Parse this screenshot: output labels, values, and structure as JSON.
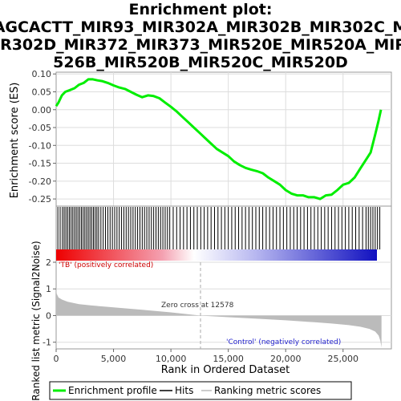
{
  "title_lines": [
    "Enrichment plot:",
    "AGCACTT_MIR93_MIR302A_MIR302B_MIR302C_M",
    "IR302D_MIR372_MIR373_MIR520E_MIR520A_MIR",
    "526B_MIR520B_MIR520C_MIR520D"
  ],
  "colors": {
    "es_line": "#00ee00",
    "hits": "#000000",
    "ranked_fill": "#bbbbbb",
    "positive": "#ee0000",
    "negative": "#0000cc",
    "grid": "#dddddd"
  },
  "chart_data": [
    {
      "type": "line",
      "name": "enrichment",
      "ylabel": "Enrichment score (ES)",
      "ylim": [
        -0.27,
        0.105
      ],
      "xlim": [
        0,
        29000
      ],
      "yticks": [
        "0.10",
        "0.05",
        "0.00",
        "-0.05",
        "-0.10",
        "-0.15",
        "-0.20",
        "-0.25"
      ],
      "grid": true,
      "series": [
        {
          "name": "Enrichment profile",
          "x": [
            0,
            200,
            500,
            800,
            1200,
            1600,
            2000,
            2400,
            2800,
            3200,
            3600,
            4000,
            4500,
            5000,
            5500,
            6000,
            6500,
            7000,
            7500,
            8000,
            8500,
            9000,
            9500,
            10000,
            10500,
            11000,
            11500,
            12000,
            12500,
            13000,
            13500,
            14000,
            14500,
            15000,
            15500,
            16000,
            16500,
            17000,
            17500,
            18000,
            18500,
            19000,
            19500,
            20000,
            20500,
            21000,
            21500,
            22000,
            22500,
            23000,
            23500,
            24000,
            24500,
            25000,
            25500,
            26000,
            26500,
            27000,
            27400,
            27800,
            28100,
            28300
          ],
          "y": [
            0.01,
            0.02,
            0.04,
            0.05,
            0.055,
            0.06,
            0.07,
            0.075,
            0.085,
            0.085,
            0.082,
            0.08,
            0.075,
            0.068,
            0.062,
            0.058,
            0.05,
            0.042,
            0.035,
            0.04,
            0.038,
            0.032,
            0.02,
            0.008,
            -0.005,
            -0.02,
            -0.035,
            -0.05,
            -0.065,
            -0.08,
            -0.095,
            -0.11,
            -0.12,
            -0.13,
            -0.145,
            -0.155,
            -0.163,
            -0.168,
            -0.172,
            -0.178,
            -0.19,
            -0.2,
            -0.21,
            -0.225,
            -0.235,
            -0.24,
            -0.24,
            -0.245,
            -0.245,
            -0.25,
            -0.24,
            -0.238,
            -0.225,
            -0.21,
            -0.205,
            -0.19,
            -0.165,
            -0.14,
            -0.12,
            -0.07,
            -0.03,
            0.0
          ]
        }
      ]
    },
    {
      "type": "hits",
      "name": "hits",
      "xlim": [
        0,
        29000
      ],
      "positions": [
        150,
        350,
        550,
        700,
        850,
        1000,
        1150,
        1300,
        1450,
        1600,
        1750,
        1900,
        2050,
        2200,
        2350,
        2500,
        2650,
        2800,
        2950,
        3100,
        3250,
        3400,
        3550,
        3700,
        3900,
        4100,
        4300,
        4500,
        4700,
        4900,
        5100,
        5300,
        5500,
        5700,
        5900,
        6100,
        6300,
        6500,
        6700,
        6900,
        7100,
        7300,
        7500,
        7700,
        7900,
        8100,
        8300,
        8500,
        8700,
        8900,
        9100,
        9300,
        9500,
        9700,
        9900,
        10200,
        10500,
        10800,
        11100,
        11400,
        11700,
        12000,
        12300,
        12600,
        12900,
        13200,
        13500,
        13800,
        14100,
        14400,
        14700,
        15000,
        15300,
        15600,
        15900,
        16200,
        16500,
        16800,
        17100,
        17400,
        17700,
        18000,
        18300,
        18600,
        18900,
        19200,
        19500,
        19800,
        20100,
        20400,
        20700,
        21000,
        21300,
        21600,
        21900,
        22200,
        22500,
        22800,
        23100,
        23400,
        23700,
        24000,
        24300,
        24600,
        24900,
        25200,
        25500,
        25800,
        26100,
        26400,
        26700,
        27000,
        27200,
        27400,
        27600,
        27800,
        28000,
        28200
      ]
    },
    {
      "type": "area",
      "name": "ranked_list",
      "xlabel": "Rank in Ordered Dataset",
      "ylabel": "Ranked list metric (Signal2Noise)",
      "ylim": [
        -1.25,
        2.0
      ],
      "xlim": [
        0,
        29000
      ],
      "yticks": [
        "2",
        "1",
        "0",
        "-1"
      ],
      "xticks": [
        0,
        5000,
        10000,
        15000,
        20000,
        25000
      ],
      "xtick_labels": [
        "0",
        "5,000",
        "10,000",
        "15,000",
        "20,000",
        "25,000"
      ],
      "x": [
        0,
        50,
        200,
        500,
        1000,
        2000,
        3000,
        5000,
        7500,
        10000,
        12578,
        15000,
        17500,
        20000,
        22500,
        24000,
        25500,
        26500,
        27300,
        27800,
        28100,
        28250,
        28350
      ],
      "values": [
        1.1,
        0.82,
        0.68,
        0.6,
        0.52,
        0.43,
        0.38,
        0.31,
        0.22,
        0.12,
        0.0,
        -0.06,
        -0.12,
        -0.18,
        -0.25,
        -0.3,
        -0.36,
        -0.42,
        -0.5,
        -0.6,
        -0.75,
        -0.95,
        -1.2
      ],
      "zero_cross_rank": 12578,
      "annotations": {
        "zero_cross": "Zero cross at 12578",
        "positive": "'TB' (positively correlated)",
        "negative": "'Control' (negatively correlated)"
      }
    }
  ],
  "legend": [
    {
      "label": "Enrichment profile",
      "color": "#00ee00"
    },
    {
      "label": "Hits",
      "color": "#000000"
    },
    {
      "label": "Ranking metric scores",
      "color": "#bbbbbb"
    }
  ]
}
